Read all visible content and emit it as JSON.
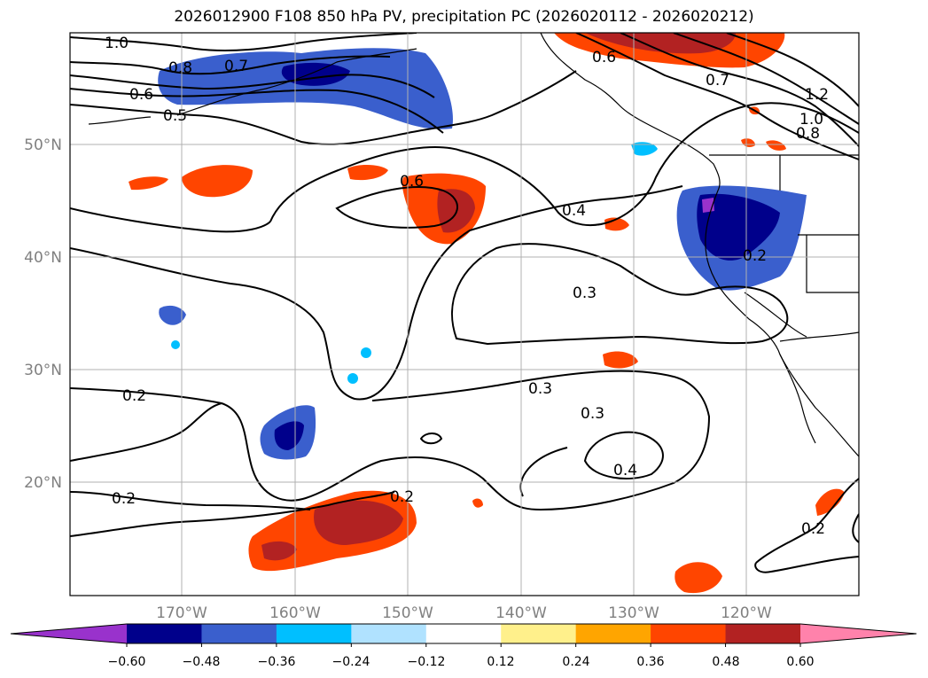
{
  "title": "2026012900 F108 850 hPa PV, precipitation PC (2026020112 - 2026020212)",
  "lat_labels": [
    "50°N",
    "40°N",
    "30°N",
    "20°N"
  ],
  "lon_labels": [
    "170°W",
    "160°W",
    "150°W",
    "140°W",
    "130°W",
    "120°W"
  ],
  "contour_labels": [
    "1.0",
    "0.8",
    "0.7",
    "0.6",
    "0.5",
    "0.6",
    "0.4",
    "0.3",
    "0.3",
    "0.2",
    "0.3",
    "0.4",
    "0.2",
    "0.2",
    "0.2",
    "0.6",
    "0.7",
    "1.2",
    "1.0",
    "0.8",
    "0.2"
  ],
  "colorbar": {
    "ticks": [
      "−0.60",
      "−0.48",
      "−0.36",
      "−0.24",
      "−0.12",
      "0.12",
      "0.24",
      "0.36",
      "0.48",
      "0.60"
    ],
    "colors": [
      "#9932cc",
      "#00008b",
      "#3a5fcd",
      "#00bfff",
      "#b0e2ff",
      "#ffffff",
      "#fff08b",
      "#ffa500",
      "#ff4500",
      "#b22222",
      "#ff82ab"
    ]
  }
}
